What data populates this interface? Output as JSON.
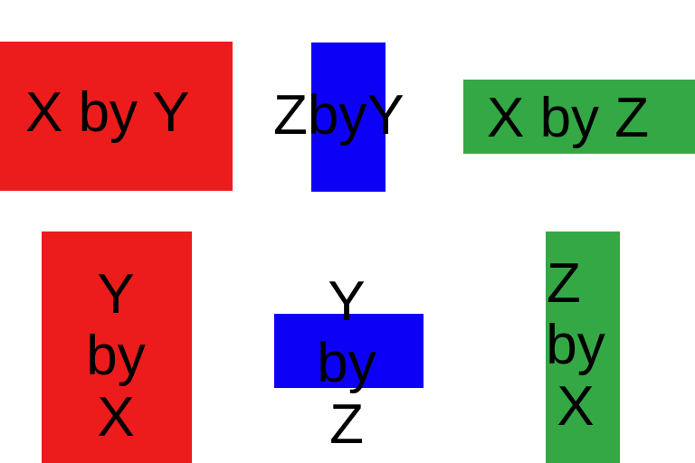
{
  "colors": {
    "red": "#ec1c1c",
    "blue": "#0d00f6",
    "green": "#34a844"
  },
  "shapes": [
    {
      "id": "red-wide",
      "color": "red",
      "text": "X by Y"
    },
    {
      "id": "blue-tall",
      "color": "blue",
      "text": "ZbyY"
    },
    {
      "id": "green-wide",
      "color": "green",
      "text": "X by Z"
    },
    {
      "id": "red-tall",
      "color": "red",
      "lines": [
        "Y",
        "by",
        "X"
      ]
    },
    {
      "id": "blue-wide",
      "color": "blue",
      "lines": [
        "Y",
        "by",
        "Z"
      ]
    },
    {
      "id": "green-tall",
      "color": "green",
      "lines": [
        "Z",
        "by",
        "X"
      ]
    }
  ]
}
